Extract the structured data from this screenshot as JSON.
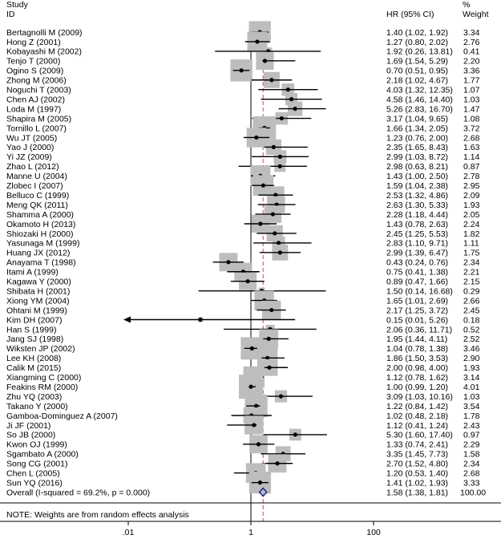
{
  "chart_data": {
    "type": "forest",
    "headers": {
      "study_line1": "Study",
      "study_line2": "ID",
      "hr": "HR (95% CI)",
      "weight_line1": "%",
      "weight_line2": "Weight"
    },
    "x_axis": {
      "scale": "log",
      "ticks": [
        {
          "value": 0.01,
          "label": ".01"
        },
        {
          "value": 1,
          "label": "1"
        },
        {
          "value": 100,
          "label": "100"
        }
      ],
      "null_line": 1
    },
    "studies": [
      {
        "id": "Bertagnolli M (2009)",
        "hr": 1.4,
        "lo": 1.02,
        "hi": 1.92,
        "hr_text": "1.40 (1.02, 1.92)",
        "weight": "3.34",
        "w": 3.34
      },
      {
        "id": "Hong Z (2001)",
        "hr": 1.27,
        "lo": 0.8,
        "hi": 2.02,
        "hr_text": "1.27 (0.80, 2.02)",
        "weight": "2.76",
        "w": 2.76
      },
      {
        "id": "Kobayashi M (2002)",
        "hr": 1.92,
        "lo": 0.26,
        "hi": 13.81,
        "hr_text": "1.92 (0.26, 13.81)",
        "weight": "0.41",
        "w": 0.41
      },
      {
        "id": "Tenjo T (2000)",
        "hr": 1.69,
        "lo": 1.54,
        "hi": 5.29,
        "hr_text": "1.69 (1.54, 5.29)",
        "weight": "2.20",
        "w": 2.2
      },
      {
        "id": "Ogino S (2009)",
        "hr": 0.7,
        "lo": 0.51,
        "hi": 0.95,
        "hr_text": "0.70 (0.51, 0.95)",
        "weight": "3.36",
        "w": 3.36
      },
      {
        "id": "Zhong M (2006)",
        "hr": 2.18,
        "lo": 1.02,
        "hi": 4.67,
        "hr_text": "2.18 (1.02, 4.67)",
        "weight": "1.77",
        "w": 1.77
      },
      {
        "id": "Noguchi T (2003)",
        "hr": 4.03,
        "lo": 1.32,
        "hi": 12.35,
        "hr_text": "4.03 (1.32, 12.35)",
        "weight": "1.07",
        "w": 1.07
      },
      {
        "id": "Chen AJ (2002)",
        "hr": 4.58,
        "lo": 1.46,
        "hi": 14.4,
        "hr_text": "4.58 (1.46, 14.40)",
        "weight": "1.03",
        "w": 1.03
      },
      {
        "id": "Loda M (1997)",
        "hr": 5.26,
        "lo": 2.83,
        "hi": 16.7,
        "hr_text": "5.26 (2.83, 16.70)",
        "weight": "1.47",
        "w": 1.47
      },
      {
        "id": "Shapira M (2005)",
        "hr": 3.17,
        "lo": 1.04,
        "hi": 9.65,
        "hr_text": "3.17 (1.04, 9.65)",
        "weight": "1.08",
        "w": 1.08
      },
      {
        "id": "Tornillo L (2007)",
        "hr": 1.66,
        "lo": 1.34,
        "hi": 2.05,
        "hr_text": "1.66 (1.34, 2.05)",
        "weight": "3.72",
        "w": 3.72
      },
      {
        "id": "Wu JT (2005)",
        "hr": 1.23,
        "lo": 0.76,
        "hi": 2.0,
        "hr_text": "1.23 (0.76, 2.00)",
        "weight": "2.68",
        "w": 2.68
      },
      {
        "id": "Yao J (2000)",
        "hr": 2.35,
        "lo": 1.65,
        "hi": 8.43,
        "hr_text": "2.35 (1.65, 8.43)",
        "weight": "1.63",
        "w": 1.63
      },
      {
        "id": "Yi JZ (2009)",
        "hr": 2.99,
        "lo": 1.03,
        "hi": 8.72,
        "hr_text": "2.99 (1.03, 8.72)",
        "weight": "1.14",
        "w": 1.14
      },
      {
        "id": "Zhao L (2012)",
        "hr": 2.98,
        "lo": 0.63,
        "hi": 8.21,
        "hr_text": "2.98 (0.63, 8.21)",
        "weight": "0.87",
        "w": 0.87
      },
      {
        "id": "Manne U (2004)",
        "hr": 1.43,
        "lo": 1.0,
        "hi": 2.5,
        "hr_text": "1.43 (1.00, 2.50)",
        "weight": "2.78",
        "w": 2.78
      },
      {
        "id": "Zlobec I (2007)",
        "hr": 1.59,
        "lo": 1.04,
        "hi": 2.38,
        "hr_text": "1.59 (1.04, 2.38)",
        "weight": "2.95",
        "w": 2.95
      },
      {
        "id": "Belluco C  (1999)",
        "hr": 2.53,
        "lo": 1.32,
        "hi": 4.86,
        "hr_text": "2.53 (1.32, 4.86)",
        "weight": "2.09",
        "w": 2.09
      },
      {
        "id": "Meng QK (2011)",
        "hr": 2.63,
        "lo": 1.3,
        "hi": 5.33,
        "hr_text": "2.63 (1.30, 5.33)",
        "weight": "1.93",
        "w": 1.93
      },
      {
        "id": "Shamma A (2000)",
        "hr": 2.28,
        "lo": 1.18,
        "hi": 4.44,
        "hr_text": "2.28 (1.18, 4.44)",
        "weight": "2.05",
        "w": 2.05
      },
      {
        "id": "Okamoto H (2013)",
        "hr": 1.43,
        "lo": 0.78,
        "hi": 2.63,
        "hr_text": "1.43 (0.78, 2.63)",
        "weight": "2.24",
        "w": 2.24
      },
      {
        "id": "Shiozaki H (2000)",
        "hr": 2.45,
        "lo": 1.25,
        "hi": 5.53,
        "hr_text": "2.45 (1.25, 5.53)",
        "weight": "1.82",
        "w": 1.82
      },
      {
        "id": "Yasunaga M (1999)",
        "hr": 2.83,
        "lo": 1.1,
        "hi": 9.71,
        "hr_text": "2.83 (1.10, 9.71)",
        "weight": "1.11",
        "w": 1.11
      },
      {
        "id": "Huang JX (2012)",
        "hr": 2.99,
        "lo": 1.39,
        "hi": 6.47,
        "hr_text": "2.99 (1.39, 6.47)",
        "weight": "1.75",
        "w": 1.75
      },
      {
        "id": "Anayama T (1998)",
        "hr": 0.43,
        "lo": 0.24,
        "hi": 0.76,
        "hr_text": "0.43 (0.24, 0.76)",
        "weight": "2.34",
        "w": 2.34
      },
      {
        "id": "Itami A (1999)",
        "hr": 0.75,
        "lo": 0.41,
        "hi": 1.38,
        "hr_text": "0.75 (0.41, 1.38)",
        "weight": "2.21",
        "w": 2.21
      },
      {
        "id": "Kagawa Y (2000)",
        "hr": 0.89,
        "lo": 0.47,
        "hi": 1.66,
        "hr_text": "0.89 (0.47, 1.66)",
        "weight": "2.15",
        "w": 2.15
      },
      {
        "id": "Shibata H (2001)",
        "hr": 1.5,
        "lo": 0.14,
        "hi": 16.68,
        "hr_text": "1.50 (0.14, 16.68)",
        "weight": "0.29",
        "w": 0.29
      },
      {
        "id": "Xiong YM (2004)",
        "hr": 1.65,
        "lo": 1.01,
        "hi": 2.69,
        "hr_text": "1.65 (1.01, 2.69)",
        "weight": "2.66",
        "w": 2.66
      },
      {
        "id": "Ohtani M (1999)",
        "hr": 2.17,
        "lo": 1.25,
        "hi": 3.72,
        "hr_text": "2.17 (1.25, 3.72)",
        "weight": "2.45",
        "w": 2.45
      },
      {
        "id": "Kim DH (2007)",
        "hr": 0.15,
        "lo": 0.01,
        "hi": 5.26,
        "hr_text": "0.15 (0.01, 5.26)",
        "weight": "0.18",
        "w": 0.18,
        "arrow_left": true
      },
      {
        "id": "Han S (1999)",
        "hr": 2.06,
        "lo": 0.36,
        "hi": 11.71,
        "hr_text": "2.06 (0.36, 11.71)",
        "weight": "0.52",
        "w": 0.52
      },
      {
        "id": "Jang SJ (1998)",
        "hr": 1.95,
        "lo": 1.44,
        "hi": 4.11,
        "hr_text": "1.95 (1.44, 4.11)",
        "weight": "2.52",
        "w": 2.52
      },
      {
        "id": "Wiksten JP (2002)",
        "hr": 1.04,
        "lo": 0.78,
        "hi": 1.38,
        "hr_text": "1.04 (0.78, 1.38)",
        "weight": "3.46",
        "w": 3.46
      },
      {
        "id": "Lee KH (2008)",
        "hr": 1.86,
        "lo": 1.5,
        "hi": 3.53,
        "hr_text": "1.86 (1.50, 3.53)",
        "weight": "2.90",
        "w": 2.9
      },
      {
        "id": "Calik M (2015)",
        "hr": 2.0,
        "lo": 0.98,
        "hi": 4.0,
        "hr_text": "2.00 (0.98, 4.00)",
        "weight": "1.93",
        "w": 1.93
      },
      {
        "id": "Xiangming C (2000)",
        "hr": 1.12,
        "lo": 0.78,
        "hi": 1.62,
        "hr_text": "1.12 (0.78, 1.62)",
        "weight": "3.14",
        "w": 3.14
      },
      {
        "id": "Feakins RM (2000)",
        "hr": 1.0,
        "lo": 0.99,
        "hi": 1.2,
        "hr_text": "1.00 (0.99, 1.20)",
        "weight": "4.01",
        "w": 4.01
      },
      {
        "id": "Zhu YQ (2003)",
        "hr": 3.09,
        "lo": 1.03,
        "hi": 10.16,
        "hr_text": "3.09 (1.03, 10.16)",
        "weight": "1.03",
        "w": 1.03
      },
      {
        "id": "Takano Y (2000)",
        "hr": 1.22,
        "lo": 0.84,
        "hi": 1.42,
        "hr_text": "1.22 (0.84, 1.42)",
        "weight": "3.54",
        "w": 3.54
      },
      {
        "id": "Gamboa-Dominguez A (2007)",
        "hr": 1.02,
        "lo": 0.48,
        "hi": 2.18,
        "hr_text": "1.02 (0.48, 2.18)",
        "weight": "1.78",
        "w": 1.78
      },
      {
        "id": "Ji JF (2001)",
        "hr": 1.12,
        "lo": 0.41,
        "hi": 1.24,
        "hr_text": "1.12 (0.41, 1.24)",
        "weight": "2.43",
        "w": 2.43
      },
      {
        "id": "So JB (2000)",
        "hr": 5.3,
        "lo": 1.6,
        "hi": 17.4,
        "hr_text": "5.30 (1.60, 17.40)",
        "weight": "0.97",
        "w": 0.97
      },
      {
        "id": "Kwon OJ (1999)",
        "hr": 1.33,
        "lo": 0.74,
        "hi": 2.41,
        "hr_text": "1.33 (0.74, 2.41)",
        "weight": "2.29",
        "w": 2.29
      },
      {
        "id": "Sgambato A (2000)",
        "hr": 3.35,
        "lo": 1.45,
        "hi": 7.73,
        "hr_text": "3.35 (1.45, 7.73)",
        "weight": "1.58",
        "w": 1.58
      },
      {
        "id": "Song CG (2001)",
        "hr": 2.7,
        "lo": 1.52,
        "hi": 4.8,
        "hr_text": "2.70 (1.52, 4.80)",
        "weight": "2.34",
        "w": 2.34
      },
      {
        "id": "Chen L (2005)",
        "hr": 1.2,
        "lo": 0.53,
        "hi": 1.4,
        "hr_text": "1.20 (0.53, 1.40)",
        "weight": "2.68",
        "w": 2.68
      },
      {
        "id": "Sun YQ (2016)",
        "hr": 1.41,
        "lo": 1.02,
        "hi": 1.93,
        "hr_text": "1.41 (1.02, 1.93)",
        "weight": "3.33",
        "w": 3.33
      }
    ],
    "overall": {
      "id": "Overall  (I-squared = 69.2%, p = 0.000)",
      "hr": 1.58,
      "lo": 1.38,
      "hi": 1.81,
      "hr_text": "1.58 (1.38, 1.81)",
      "weight": "100.00"
    },
    "note": "NOTE: Weights are from random effects analysis",
    "colors": {
      "box": "#bdbdbd",
      "point": "#000000",
      "ci": "#000000",
      "overall_diamond": "#1f2f8f",
      "overall_line": "#c0504d",
      "axis": "#000000"
    }
  }
}
